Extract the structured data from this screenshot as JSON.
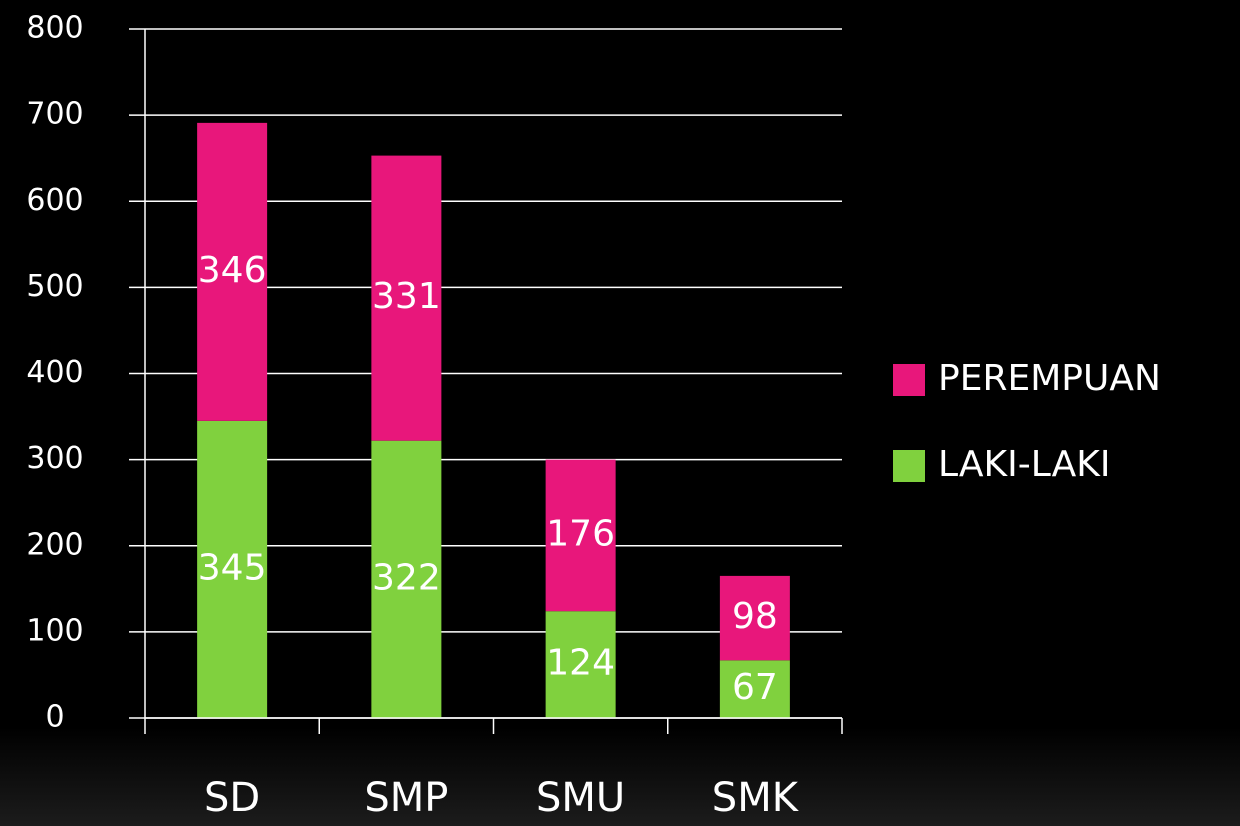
{
  "chart_data": {
    "type": "stacked-bar",
    "categories": [
      "SD",
      "SMP",
      "SMU",
      "SMK"
    ],
    "series": [
      {
        "name": "LAKI-LAKI",
        "color": "#80d13e",
        "values": [
          345,
          322,
          124,
          67
        ]
      },
      {
        "name": "PEREMPUAN",
        "color": "#e8177b",
        "values": [
          346,
          331,
          176,
          98
        ]
      }
    ],
    "ylim": [
      0,
      800
    ],
    "yticks": [
      0,
      100,
      200,
      300,
      400,
      500,
      600,
      700,
      800
    ],
    "grid": true,
    "legend": "right"
  }
}
